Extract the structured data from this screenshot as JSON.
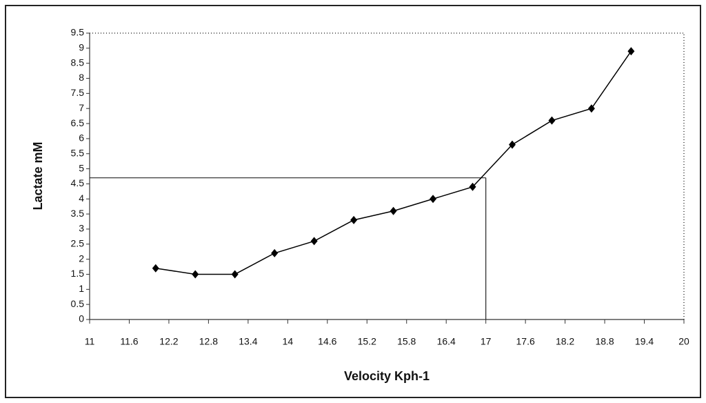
{
  "chart_data": {
    "type": "line",
    "x_label": "Velocity Kph-1",
    "y_label": "Lactate mM",
    "x": [
      12.0,
      12.6,
      13.2,
      13.8,
      14.4,
      15.0,
      15.6,
      16.2,
      16.8,
      17.4,
      18.0,
      18.6,
      19.2
    ],
    "values": [
      1.7,
      1.5,
      1.5,
      2.2,
      2.6,
      3.3,
      3.6,
      4.0,
      4.4,
      5.8,
      6.6,
      7.0,
      8.9
    ],
    "color": "#000000",
    "marker": "diamond",
    "xlim": [
      11,
      20
    ],
    "xticks": [
      11,
      11.6,
      12.2,
      12.8,
      13.4,
      14,
      14.6,
      15.2,
      15.8,
      16.4,
      17,
      17.6,
      18.2,
      18.8,
      19.4,
      20
    ],
    "ylim": [
      0,
      9.5
    ],
    "yticks": [
      0,
      0.5,
      1,
      1.5,
      2,
      2.5,
      3,
      3.5,
      4,
      4.5,
      5,
      5.5,
      6,
      6.5,
      7,
      7.5,
      8,
      8.5,
      9,
      9.5
    ],
    "reference": {
      "x": 17,
      "y": 4.7
    }
  }
}
